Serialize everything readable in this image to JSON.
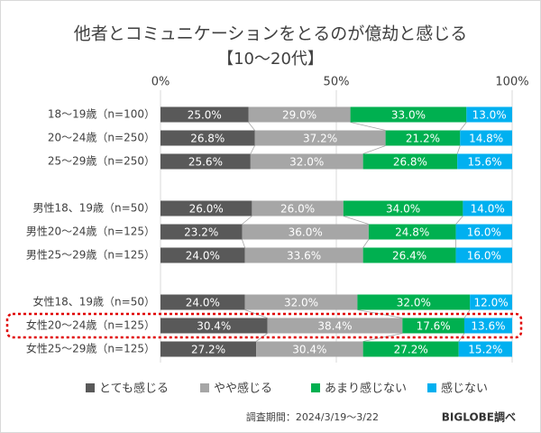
{
  "chart_data": {
    "type": "stacked-bar-horizontal",
    "title": "他者とコミュニケーションをとるのが億劫と感じる",
    "subtitle": "【10～20代】",
    "categories": [
      "18～19歳（n=100）",
      "20～24歳（n=250）",
      "25～29歳（n=250）",
      "男性18、19歳（n=50）",
      "男性20～24歳（n=125）",
      "男性25～29歳（n=125）",
      "女性18、19歳（n=50）",
      "女性20～24歳（n=125）",
      "女性25～29歳（n=125）"
    ],
    "series": [
      {
        "name": "とても感じる",
        "color": "#595959",
        "values": [
          25.0,
          26.8,
          25.6,
          26.0,
          23.2,
          24.0,
          24.0,
          30.4,
          27.2
        ],
        "value_labels": [
          "25.0%",
          "26.8%",
          "25.6%",
          "26.0%",
          "23.2%",
          "24.0%",
          "24.0%",
          "30.4%",
          "27.2%"
        ]
      },
      {
        "name": "やや感じる",
        "color": "#a6a6a6",
        "values": [
          29.0,
          37.2,
          32.0,
          26.0,
          36.0,
          33.6,
          32.0,
          38.4,
          30.4
        ],
        "value_labels": [
          "29.0%",
          "37.2%",
          "32.0%",
          "26.0%",
          "36.0%",
          "33.6%",
          "32.0%",
          "38.4%",
          "30.4%"
        ]
      },
      {
        "name": "あまり感じない",
        "color": "#00b050",
        "values": [
          33.0,
          21.2,
          26.8,
          34.0,
          24.8,
          26.4,
          32.0,
          17.6,
          27.2
        ],
        "value_labels": [
          "33.0%",
          "21.2%",
          "26.8%",
          "34.0%",
          "24.8%",
          "26.4%",
          "32.0%",
          "17.6%",
          "27.2%"
        ]
      },
      {
        "name": "感じない",
        "color": "#00b0f0",
        "values": [
          13.0,
          14.8,
          15.6,
          14.0,
          16.0,
          16.0,
          12.0,
          13.6,
          15.2
        ],
        "value_labels": [
          "13.0%",
          "14.8%",
          "15.6%",
          "14.0%",
          "16.0%",
          "16.0%",
          "12.0%",
          "13.6%",
          "15.2%"
        ]
      }
    ],
    "xlim": [
      0,
      100
    ],
    "xticks": [
      {
        "value": 0,
        "label": "0%"
      },
      {
        "value": 50,
        "label": "50%"
      },
      {
        "value": 100,
        "label": "100%"
      }
    ],
    "grid": true,
    "legend": "bottom",
    "period": "調査期間：2024/3/19～3/22",
    "source": "BIGLOBE調べ"
  }
}
